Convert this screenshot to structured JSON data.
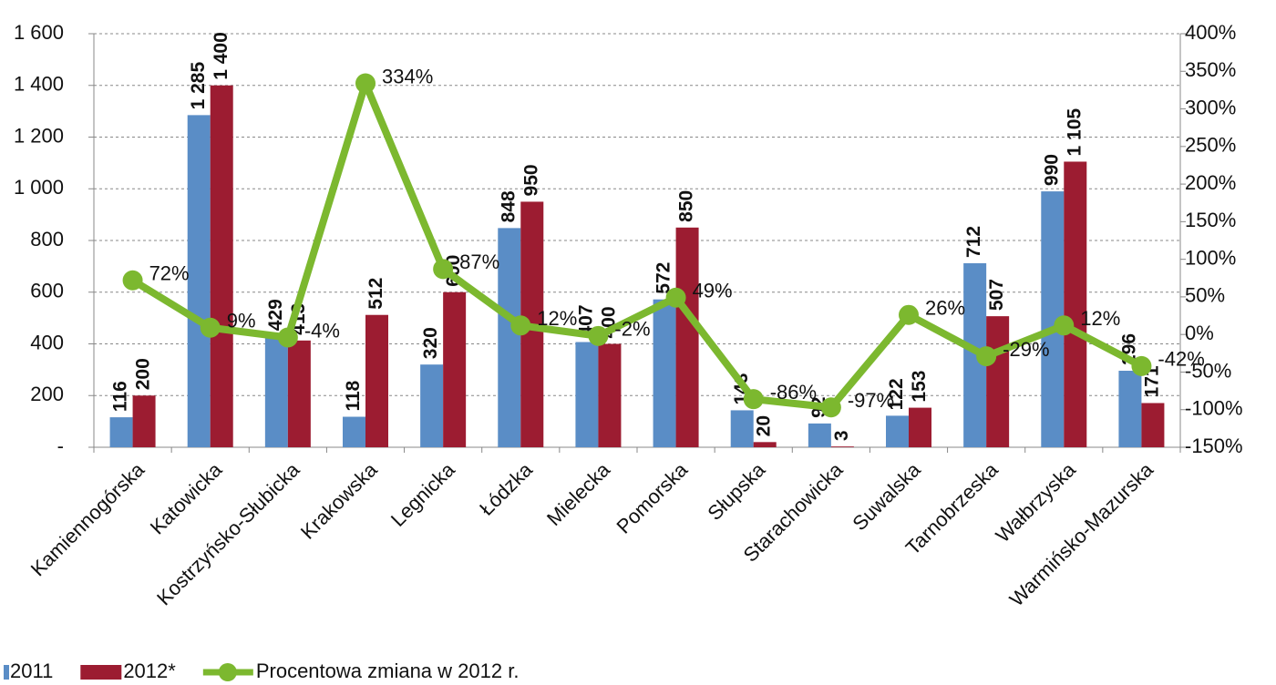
{
  "chart_data": {
    "type": "bar",
    "categories": [
      "Kamiennogórska",
      "Katowicka",
      "Kostrzyńsko-Słubicka",
      "Krakowska",
      "Legnicka",
      "Łódzka",
      "Mielecka",
      "Pomorska",
      "Słupska",
      "Starachowicka",
      "Suwalska",
      "Tarnobrzeska",
      "Wałbrzyska",
      "Warmińsko-Mazurska"
    ],
    "series": [
      {
        "name": "2011",
        "type": "bar",
        "color": "#5a8dc6",
        "values": [
          116,
          1285,
          429,
          118,
          320,
          848,
          407,
          572,
          143,
          92,
          122,
          712,
          990,
          296
        ],
        "value_labels": [
          "116",
          "1 285",
          "429",
          "118",
          "320",
          "848",
          "407",
          "572",
          "143",
          "92",
          "122",
          "712",
          "990",
          "296"
        ]
      },
      {
        "name": "2012*",
        "type": "bar",
        "color": "#9c1c31",
        "values": [
          200,
          1400,
          413,
          512,
          600,
          950,
          400,
          850,
          20,
          3,
          153,
          507,
          1105,
          171
        ],
        "value_labels": [
          "200",
          "1 400",
          "413",
          "512",
          "600",
          "950",
          "400",
          "850",
          "20",
          "3",
          "153",
          "507",
          "1 105",
          "171"
        ]
      },
      {
        "name": "Procentowa zmiana  w 2012 r.",
        "type": "line",
        "axis": "y2",
        "color": "#7cb82f",
        "values": [
          72,
          9,
          -4,
          334,
          87,
          12,
          -2,
          49,
          -86,
          -97,
          26,
          -29,
          12,
          -42
        ],
        "value_labels": [
          "72%",
          "9%",
          "-4%",
          "334%",
          "87%",
          "12%",
          "-2%",
          "49%",
          "-86%",
          "-97%",
          "26%",
          "-29%",
          "12%",
          "-42%"
        ]
      }
    ],
    "ylim": [
      0,
      1600
    ],
    "yticks": [
      {
        "value": 0,
        "label": "-"
      },
      200,
      400,
      600,
      800,
      {
        "value": 1000,
        "label": "1 000"
      },
      {
        "value": 1200,
        "label": "1 200"
      },
      {
        "value": 1400,
        "label": "1 400"
      },
      {
        "value": 1600,
        "label": "1 600"
      }
    ],
    "y2lim": [
      -150,
      400
    ],
    "y2ticks": [
      {
        "value": -150,
        "label": "-150%"
      },
      {
        "value": -100,
        "label": "-100%"
      },
      {
        "value": -50,
        "label": "-50%"
      },
      {
        "value": 0,
        "label": "0%"
      },
      {
        "value": 50,
        "label": "50%"
      },
      {
        "value": 100,
        "label": "100%"
      },
      {
        "value": 150,
        "label": "150%"
      },
      {
        "value": 200,
        "label": "200%"
      },
      {
        "value": 250,
        "label": "250%"
      },
      {
        "value": 300,
        "label": "300%"
      },
      {
        "value": 350,
        "label": "350%"
      },
      {
        "value": 400,
        "label": "400%"
      }
    ],
    "grid": true,
    "legend": "bottom"
  }
}
